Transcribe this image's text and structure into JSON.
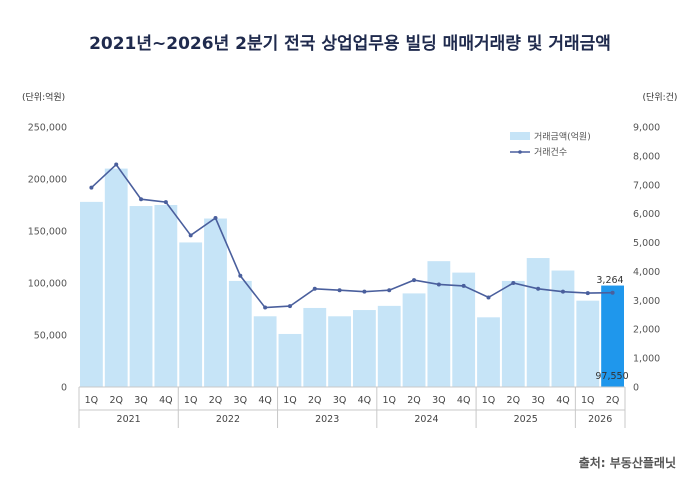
{
  "chart_data": {
    "type": "bar",
    "title": "2021년~2026년 2분기 전국 상업업무용 빌딩 매매거래량 및 거래금액",
    "y_left_unit": "(단위:억원)",
    "y_right_unit": "(단위:건)",
    "categories": [
      "1Q",
      "2Q",
      "3Q",
      "4Q",
      "1Q",
      "2Q",
      "3Q",
      "4Q",
      "1Q",
      "2Q",
      "3Q",
      "4Q",
      "1Q",
      "2Q",
      "3Q",
      "4Q",
      "1Q",
      "2Q",
      "3Q",
      "4Q",
      "1Q",
      "2Q"
    ],
    "years": [
      {
        "label": "2021",
        "count": 4
      },
      {
        "label": "2022",
        "count": 4
      },
      {
        "label": "2023",
        "count": 4
      },
      {
        "label": "2024",
        "count": 4
      },
      {
        "label": "2025",
        "count": 4
      },
      {
        "label": "2026",
        "count": 2
      }
    ],
    "y_left_ticks": [
      "0",
      "50,000",
      "100,000",
      "150,000",
      "200,000",
      "250,000"
    ],
    "y_right_ticks": [
      "0",
      "1,000",
      "2,000",
      "3,000",
      "4,000",
      "5,000",
      "6,000",
      "7,000",
      "8,000",
      "9,000"
    ],
    "ylim_left": [
      0,
      250000
    ],
    "ylim_right": [
      0,
      9000
    ],
    "series": [
      {
        "name": "거래금액(억원)",
        "type": "bar",
        "axis": "left",
        "color": "#c6e4f7",
        "highlight_color": "#1f97ec",
        "values": [
          178000,
          210000,
          174000,
          175000,
          139000,
          162000,
          102000,
          68000,
          51000,
          76000,
          68000,
          74000,
          78000,
          90000,
          121000,
          110000,
          67000,
          102000,
          124000,
          112000,
          83000,
          97550
        ]
      },
      {
        "name": "거래건수",
        "type": "line",
        "axis": "right",
        "color": "#4a5f9d",
        "values": [
          6900,
          7700,
          6500,
          6400,
          5250,
          5850,
          3850,
          2750,
          2800,
          3400,
          3350,
          3300,
          3350,
          3700,
          3550,
          3500,
          3100,
          3600,
          3400,
          3300,
          3250,
          3264
        ]
      }
    ],
    "data_labels": {
      "bar_last": "97,550",
      "line_last": "3,264"
    },
    "legend_position": "top-right",
    "grid": false,
    "source": "출처: 부동산플래닛"
  }
}
